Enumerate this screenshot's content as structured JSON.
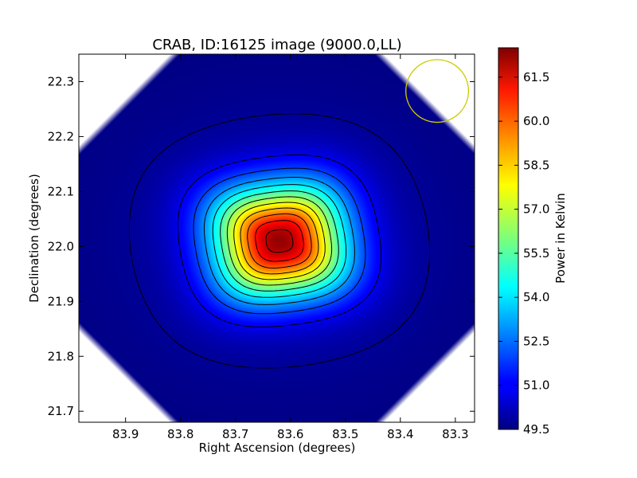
{
  "chart_data": {
    "type": "heatmap",
    "title": "CRAB, ID:16125 image (9000.0,LL)",
    "xlabel": "Right Ascension (degrees)",
    "ylabel": "Declination (degrees)",
    "xlim": [
      83.985,
      83.265
    ],
    "ylim": [
      21.68,
      22.35
    ],
    "x_reversed": true,
    "x_ticks": [
      "83.9",
      "83.8",
      "83.7",
      "83.6",
      "83.5",
      "83.4",
      "83.3"
    ],
    "y_ticks": [
      "21.7",
      "21.8",
      "21.9",
      "22.0",
      "22.1",
      "22.2",
      "22.3"
    ],
    "colormap": "jet",
    "colorbar": {
      "label": "Power in Kelvin",
      "range": [
        49.5,
        62.5
      ],
      "ticks": [
        "49.5",
        "51.0",
        "52.5",
        "54.0",
        "55.5",
        "57.0",
        "58.5",
        "60.0",
        "61.5"
      ]
    },
    "peak": {
      "ra": 83.62,
      "dec": 22.01,
      "value": 62.3
    },
    "background_level": 49.5,
    "contours": {
      "count": 12,
      "color": "#000000"
    },
    "beam_circle": {
      "ra": 83.333,
      "dec": 22.283,
      "radius_deg": 0.057,
      "color": "#cccc00"
    },
    "blank_corners": true
  }
}
